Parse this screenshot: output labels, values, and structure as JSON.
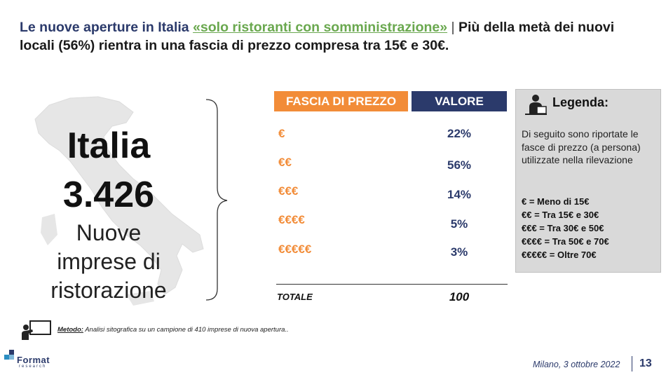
{
  "title": {
    "part1": "Le nuove aperture in Italia ",
    "highlight": "«solo ristoranti con somministrazione»",
    "separator": " | ",
    "part2": "Più della metà dei nuovi locali (56%) rientra in una fascia di prezzo compresa tra 15€ e 30€."
  },
  "left_panel": {
    "region": "Italia",
    "count": "3.426",
    "description_lines": [
      "Nuove",
      "imprese di",
      "ristorazione"
    ]
  },
  "table": {
    "header_price": "FASCIA DI PREZZO",
    "header_value": "VALORE",
    "rows": [
      {
        "price": "€",
        "value": "22%"
      },
      {
        "price": "€€",
        "value": "56%"
      },
      {
        "price": "€€€",
        "value": "14%"
      },
      {
        "price": "€€€€",
        "value": "5%"
      },
      {
        "price": "€€€€€",
        "value": "3%"
      }
    ],
    "total_label": "TOTALE",
    "total_value": "100"
  },
  "legend": {
    "icon": "presenter-icon",
    "title": "Legenda:",
    "text": "Di seguito sono riportate le fasce di prezzo (a persona) utilizzate nella rilevazione",
    "items": [
      "€ = Meno di 15€",
      "€€ = Tra 15€ e 30€",
      "€€€ = Tra 30€ e 50€",
      "€€€€ = Tra 50€ e 70€",
      "€€€€€ = Oltre 70€"
    ]
  },
  "method": {
    "icon": "teacher-board-icon",
    "label": "Metodo:",
    "text": " Analisi sitografica su un campione di 410 imprese di nuova apertura.."
  },
  "logo": {
    "name": "Format",
    "sub": "research"
  },
  "footer": {
    "date": "Milano, 3 ottobre 2022",
    "page": "13"
  },
  "colors": {
    "orange": "#f28c38",
    "navy": "#2b3a6b",
    "green": "#6aa84f",
    "legend_bg": "#d9d9d9"
  }
}
